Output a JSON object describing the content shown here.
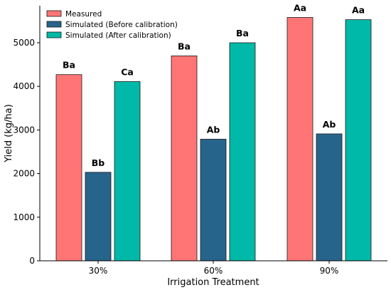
{
  "chart_data": {
    "type": "bar",
    "title": "",
    "xlabel": "Irrigation Treatment",
    "ylabel": "Yield (kg/ha)",
    "categories": [
      "30%",
      "60%",
      "90%"
    ],
    "ylim": [
      0,
      5850
    ],
    "yticks": [
      0,
      1000,
      2000,
      3000,
      4000,
      5000
    ],
    "grid": false,
    "legend_position": "top-left",
    "series": [
      {
        "name": "Measured",
        "color": "#ff7575",
        "values": [
          4270,
          4700,
          5580
        ],
        "labels": [
          "Ba",
          "Ba",
          "Aa"
        ]
      },
      {
        "name": "Simulated (Before calibration)",
        "color": "#27648c",
        "values": [
          2030,
          2790,
          2910
        ],
        "labels": [
          "Bb",
          "Ab",
          "Ab"
        ]
      },
      {
        "name": "Simulated (After calibration)",
        "color": "#00b9a8",
        "values": [
          4110,
          5000,
          5530
        ],
        "labels": [
          "Ca",
          "Ba",
          "Aa"
        ]
      }
    ]
  }
}
